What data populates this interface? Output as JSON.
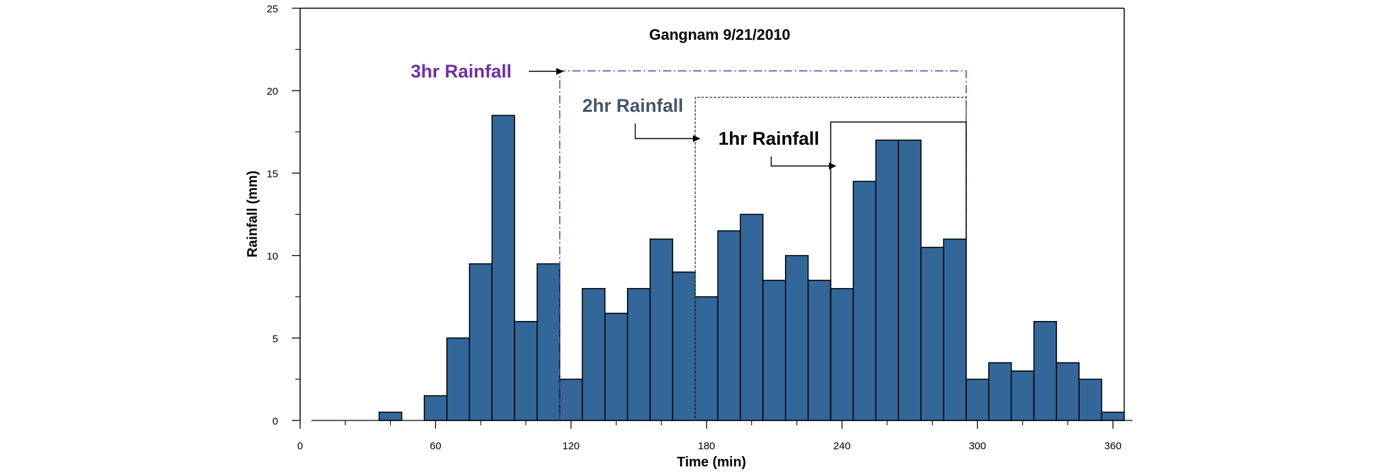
{
  "chart_data": {
    "type": "bar",
    "title": "Gangnam 9/21/2010",
    "xlabel": "Time (min)",
    "ylabel": "Rainfall (mm)",
    "xlim": [
      0,
      365
    ],
    "ylim": [
      0,
      25
    ],
    "x_ticks": [
      0,
      60,
      120,
      180,
      240,
      300,
      360
    ],
    "y_ticks": [
      0,
      5,
      10,
      15,
      20,
      25
    ],
    "bar_width": 10,
    "bar_color": "#336699",
    "x": [
      10,
      20,
      30,
      40,
      50,
      60,
      70,
      80,
      90,
      100,
      110,
      120,
      130,
      140,
      150,
      160,
      170,
      180,
      190,
      200,
      210,
      220,
      230,
      240,
      250,
      260,
      270,
      280,
      290,
      300,
      310,
      320,
      330,
      340,
      350,
      360,
      370
    ],
    "values": [
      0,
      0,
      0,
      0.5,
      0,
      1.5,
      5,
      9.5,
      18.5,
      6,
      9.5,
      2.5,
      8,
      6.5,
      8,
      11,
      9,
      7.5,
      11.5,
      12.5,
      8.5,
      10,
      8.5,
      8,
      14.5,
      17,
      17,
      10.5,
      11,
      2.5,
      3.5,
      3,
      6,
      3.5,
      2.5,
      0.5,
      0
    ],
    "annotations": [
      {
        "label": "3hr Rainfall",
        "color": "#7030A0",
        "style": "dash-dot",
        "x_start": 115,
        "x_end": 295,
        "y_top": 21.2
      },
      {
        "label": "2hr Rainfall",
        "color": "#44546A",
        "style": "dashed",
        "x_start": 175,
        "x_end": 295,
        "y_top": 19.6
      },
      {
        "label": "1hr Rainfall",
        "color": "#000000",
        "style": "solid",
        "x_start": 235,
        "x_end": 295,
        "y_top": 18.1
      }
    ]
  }
}
